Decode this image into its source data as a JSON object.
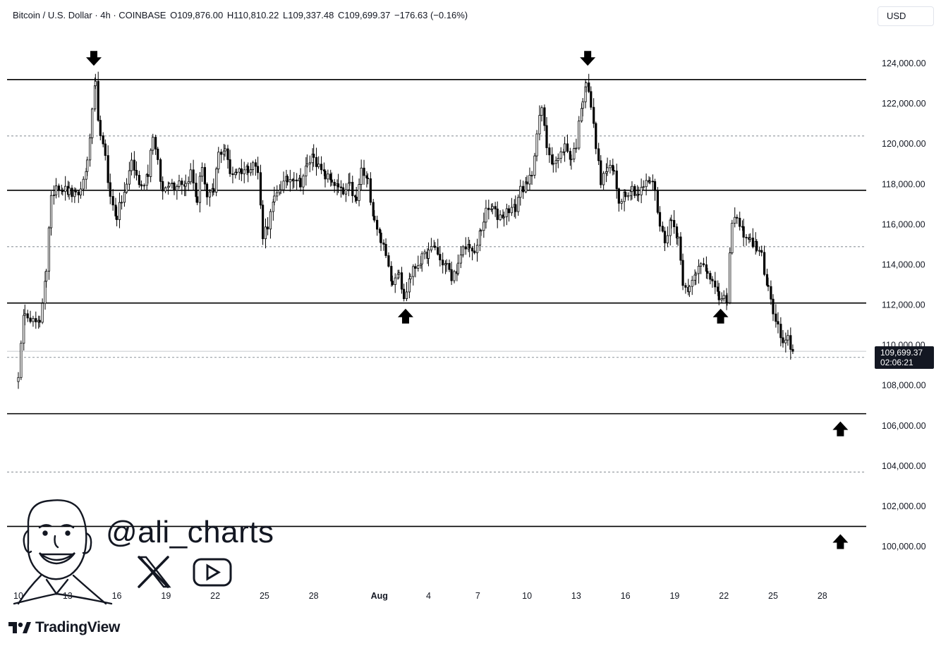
{
  "header": {
    "symbol": "Bitcoin / U.S. Dollar · 4h · COINBASE",
    "open": "O109,876.00",
    "high": "H110,810.22",
    "low": "L109,337.48",
    "close": "C109,699.37",
    "change": "−176.63 (−0.16%)"
  },
  "currency_button": "USD",
  "price_badge": {
    "price": "109,699.37",
    "countdown": "02:06:21"
  },
  "watermark": {
    "handle": "@ali_charts"
  },
  "brand": {
    "name": "TradingView"
  },
  "colors": {
    "line": "#000000",
    "dotted": "#9aa0a6",
    "candle": "#000000",
    "background": "#ffffff"
  },
  "chart_data": {
    "type": "candlestick",
    "timeframe": "4h",
    "currency": "USD",
    "ylim": [
      98000,
      124500
    ],
    "y_ticks": [
      124000,
      122000,
      120000,
      118000,
      116000,
      114000,
      112000,
      110000,
      108000,
      106000,
      104000,
      102000,
      100000
    ],
    "y_tick_labels": [
      "124,000.00",
      "122,000.00",
      "120,000.00",
      "118,000.00",
      "116,000.00",
      "114,000.00",
      "112,000.00",
      "110,000.00",
      "108,000.00",
      "106,000.00",
      "104,000.00",
      "102,000.00",
      "100,000.00"
    ],
    "x_ticks": [
      {
        "day": 10,
        "label": "10"
      },
      {
        "day": 13,
        "label": "13"
      },
      {
        "day": 16,
        "label": "16"
      },
      {
        "day": 19,
        "label": "19"
      },
      {
        "day": 22,
        "label": "22"
      },
      {
        "day": 25,
        "label": "25"
      },
      {
        "day": 28,
        "label": "28"
      },
      {
        "day": 32,
        "label": "Aug"
      },
      {
        "day": 35,
        "label": "4"
      },
      {
        "day": 38,
        "label": "7"
      },
      {
        "day": 41,
        "label": "10"
      },
      {
        "day": 44,
        "label": "13"
      },
      {
        "day": 47,
        "label": "16"
      },
      {
        "day": 50,
        "label": "19"
      },
      {
        "day": 53,
        "label": "22"
      },
      {
        "day": 56,
        "label": "25"
      },
      {
        "day": 59,
        "label": "28"
      }
    ],
    "xlim": [
      10,
      61.5
    ],
    "x_unit": "days from July 1 (Aug 1 = 32)",
    "solid_levels": [
      123200,
      117700,
      112100,
      106600,
      101000
    ],
    "dotted_levels": [
      120400,
      114900,
      109400,
      103700
    ],
    "last_price": 109699.37,
    "arrows": [
      {
        "day": 14.6,
        "price": 124200,
        "dir": "down"
      },
      {
        "day": 33.6,
        "price": 111500,
        "dir": "up"
      },
      {
        "day": 44.7,
        "price": 124200,
        "dir": "down"
      },
      {
        "day": 52.8,
        "price": 111500,
        "dir": "up"
      },
      {
        "day": 60.1,
        "price": 105900,
        "dir": "up"
      },
      {
        "day": 60.1,
        "price": 100300,
        "dir": "up"
      }
    ],
    "path": [
      [
        10.0,
        108600
      ],
      [
        10.4,
        111800
      ],
      [
        10.9,
        111200
      ],
      [
        11.3,
        111000
      ],
      [
        11.7,
        113800
      ],
      [
        12.0,
        117200
      ],
      [
        12.3,
        118000
      ],
      [
        12.7,
        117800
      ],
      [
        13.1,
        117600
      ],
      [
        13.5,
        117400
      ],
      [
        13.8,
        117700
      ],
      [
        14.2,
        119000
      ],
      [
        14.5,
        121500
      ],
      [
        14.7,
        122900
      ],
      [
        15.0,
        120200
      ],
      [
        15.3,
        119500
      ],
      [
        15.6,
        117300
      ],
      [
        16.0,
        116400
      ],
      [
        16.3,
        117200
      ],
      [
        16.6,
        117900
      ],
      [
        16.9,
        119200
      ],
      [
        17.2,
        118400
      ],
      [
        17.5,
        117800
      ],
      [
        17.9,
        118600
      ],
      [
        18.2,
        120500
      ],
      [
        18.5,
        119000
      ],
      [
        18.8,
        117600
      ],
      [
        19.2,
        118200
      ],
      [
        19.5,
        117900
      ],
      [
        19.8,
        118200
      ],
      [
        20.2,
        118000
      ],
      [
        20.5,
        118600
      ],
      [
        20.9,
        117200
      ],
      [
        21.2,
        119000
      ],
      [
        21.5,
        117300
      ],
      [
        21.9,
        117600
      ],
      [
        22.2,
        119500
      ],
      [
        22.6,
        119800
      ],
      [
        22.9,
        118500
      ],
      [
        23.3,
        118700
      ],
      [
        23.6,
        118700
      ],
      [
        24.0,
        118800
      ],
      [
        24.3,
        119100
      ],
      [
        24.6,
        118600
      ],
      [
        24.9,
        115500
      ],
      [
        25.2,
        116000
      ],
      [
        25.6,
        117200
      ],
      [
        26.0,
        117900
      ],
      [
        26.4,
        118200
      ],
      [
        26.8,
        118400
      ],
      [
        27.2,
        118100
      ],
      [
        27.6,
        118900
      ],
      [
        28.0,
        119500
      ],
      [
        28.3,
        118800
      ],
      [
        28.7,
        118400
      ],
      [
        29.1,
        118200
      ],
      [
        29.5,
        117800
      ],
      [
        29.8,
        117500
      ],
      [
        30.2,
        117900
      ],
      [
        30.6,
        117100
      ],
      [
        30.9,
        118700
      ],
      [
        31.3,
        118100
      ],
      [
        31.7,
        116300
      ],
      [
        32.1,
        115300
      ],
      [
        32.4,
        114400
      ],
      [
        32.8,
        113200
      ],
      [
        33.2,
        113800
      ],
      [
        33.5,
        112200
      ],
      [
        33.9,
        113500
      ],
      [
        34.2,
        113900
      ],
      [
        34.6,
        114300
      ],
      [
        35.0,
        114600
      ],
      [
        35.4,
        114900
      ],
      [
        35.7,
        114200
      ],
      [
        36.1,
        114000
      ],
      [
        36.4,
        113300
      ],
      [
        36.8,
        113900
      ],
      [
        37.1,
        114700
      ],
      [
        37.5,
        115000
      ],
      [
        37.8,
        114400
      ],
      [
        38.2,
        115800
      ],
      [
        38.5,
        116600
      ],
      [
        38.9,
        116800
      ],
      [
        39.2,
        116400
      ],
      [
        39.6,
        116500
      ],
      [
        39.9,
        116800
      ],
      [
        40.3,
        116800
      ],
      [
        40.6,
        117800
      ],
      [
        41.0,
        117900
      ],
      [
        41.3,
        118600
      ],
      [
        41.6,
        120500
      ],
      [
        41.9,
        121800
      ],
      [
        42.2,
        119900
      ],
      [
        42.6,
        119100
      ],
      [
        42.9,
        119200
      ],
      [
        43.3,
        119900
      ],
      [
        43.7,
        119300
      ],
      [
        44.0,
        120000
      ],
      [
        44.4,
        122300
      ],
      [
        44.6,
        123100
      ],
      [
        44.9,
        121900
      ],
      [
        45.2,
        120000
      ],
      [
        45.5,
        118100
      ],
      [
        45.9,
        118800
      ],
      [
        46.3,
        118600
      ],
      [
        46.6,
        117200
      ],
      [
        47.0,
        117600
      ],
      [
        47.4,
        117800
      ],
      [
        47.8,
        117500
      ],
      [
        48.1,
        117900
      ],
      [
        48.5,
        118200
      ],
      [
        48.8,
        117800
      ],
      [
        49.1,
        115900
      ],
      [
        49.4,
        115300
      ],
      [
        49.8,
        116200
      ],
      [
        50.2,
        115400
      ],
      [
        50.5,
        113200
      ],
      [
        50.9,
        112800
      ],
      [
        51.3,
        113500
      ],
      [
        51.6,
        114200
      ],
      [
        52.0,
        113800
      ],
      [
        52.3,
        113100
      ],
      [
        52.7,
        112300
      ],
      [
        53.0,
        112500
      ],
      [
        53.2,
        111900
      ],
      [
        53.5,
        116300
      ],
      [
        53.8,
        116200
      ],
      [
        54.2,
        115600
      ],
      [
        54.6,
        115200
      ],
      [
        55.0,
        114900
      ],
      [
        55.3,
        114400
      ],
      [
        55.7,
        112800
      ],
      [
        56.0,
        111600
      ],
      [
        56.3,
        110900
      ],
      [
        56.6,
        109900
      ],
      [
        56.9,
        110300
      ],
      [
        57.2,
        109700
      ]
    ]
  }
}
